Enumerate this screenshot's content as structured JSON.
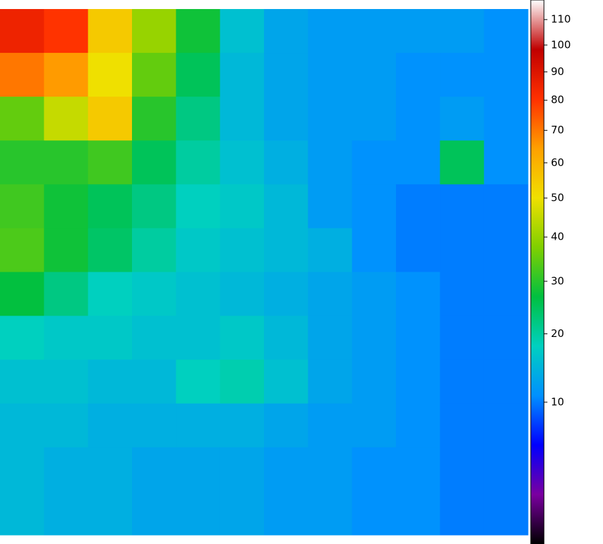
{
  "chart_data": {
    "type": "heatmap",
    "scale": "sqrt",
    "zlim": [
      0.2,
      118
    ],
    "colormap": [
      "#000000",
      "#7a00a0",
      "#0000ff",
      "#0090ff",
      "#00d0c0",
      "#00c040",
      "#80d000",
      "#f0e000",
      "#ffa000",
      "#ff3000",
      "#c00000",
      "#ffffff"
    ],
    "values": [
      [
        85,
        80,
        55,
        40,
        28,
        16,
        13,
        12,
        12,
        12,
        12,
        11
      ],
      [
        70,
        65,
        50,
        35,
        25,
        15,
        13,
        12,
        12,
        11,
        11,
        11
      ],
      [
        35,
        45,
        55,
        30,
        22,
        15,
        13,
        12,
        12,
        11,
        12,
        11
      ],
      [
        30,
        30,
        32,
        25,
        20,
        16,
        14,
        12,
        11,
        11,
        25,
        11
      ],
      [
        32,
        28,
        25,
        22,
        18,
        17,
        15,
        12,
        11,
        10,
        10,
        10
      ],
      [
        33,
        28,
        24,
        20,
        17,
        16,
        15,
        14,
        11,
        10,
        10,
        10
      ],
      [
        27,
        22,
        18,
        17,
        16,
        15,
        14,
        13,
        12,
        11,
        10,
        10
      ],
      [
        18,
        17,
        17,
        16,
        16,
        17,
        15,
        13,
        12,
        11,
        10,
        10
      ],
      [
        16,
        16,
        15,
        15,
        18,
        19,
        16,
        13,
        12,
        11,
        10,
        10
      ],
      [
        15,
        15,
        14,
        14,
        14,
        14,
        13,
        12,
        12,
        11,
        10,
        10
      ],
      [
        15,
        14,
        14,
        13,
        13,
        13,
        12,
        12,
        11,
        11,
        10,
        10
      ],
      [
        15,
        14,
        14,
        13,
        13,
        13,
        12,
        12,
        11,
        11,
        10,
        10
      ]
    ],
    "colorbar_ticks": [
      10,
      20,
      30,
      40,
      50,
      60,
      70,
      80,
      90,
      100,
      110
    ]
  }
}
